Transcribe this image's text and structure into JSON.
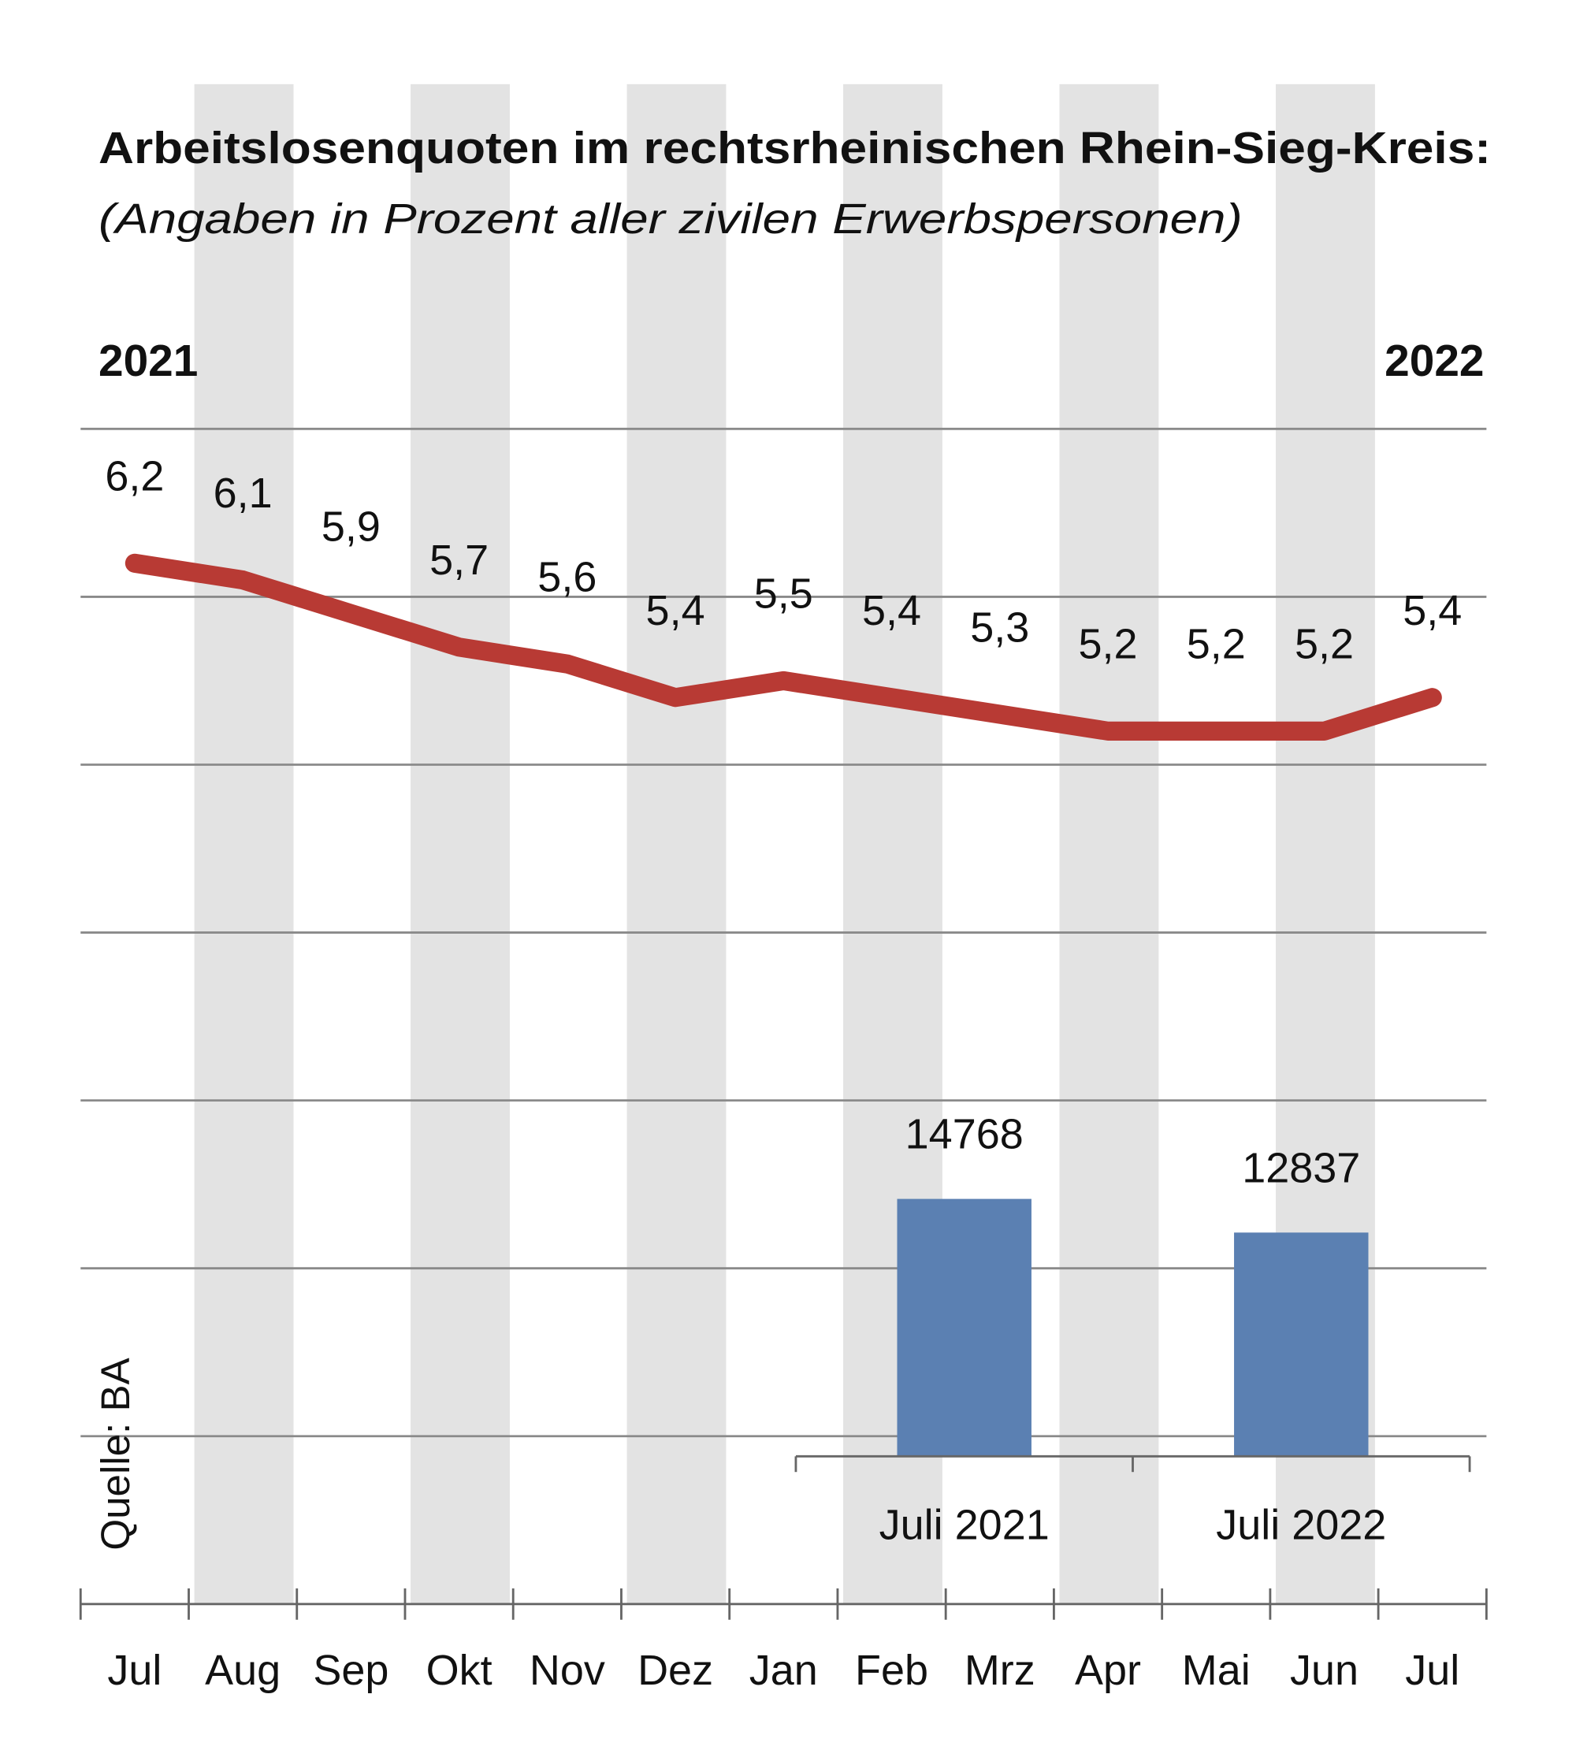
{
  "chart_data": [
    {
      "type": "line",
      "title": "Arbeitslosenquoten im rechtsrheinischen Rhein-Sieg-Kreis:",
      "subtitle": "(Angaben in Prozent aller zivilen Erwerbspersonen)",
      "start_label": "2021",
      "end_label": "2022",
      "source": "Quelle: BA",
      "categories": [
        "Jul",
        "Aug",
        "Sep",
        "Okt",
        "Nov",
        "Dez",
        "Jan",
        "Feb",
        "Mrz",
        "Apr",
        "Mai",
        "Jun",
        "Jul"
      ],
      "values": [
        6.2,
        6.1,
        5.9,
        5.7,
        5.6,
        5.4,
        5.5,
        5.4,
        5.3,
        5.2,
        5.2,
        5.2,
        5.4
      ],
      "value_labels": [
        "6,2",
        "6,1",
        "5,9",
        "5,7",
        "5,6",
        "5,4",
        "5,5",
        "5,4",
        "5,3",
        "5,2",
        "5,2",
        "5,2",
        "5,4"
      ],
      "color": "#b83a34",
      "ylim": [
        0,
        7
      ],
      "gridlines": [
        1,
        2,
        3,
        4,
        5,
        6,
        7
      ],
      "grid": true
    },
    {
      "type": "bar",
      "categories": [
        "Juli 2021",
        "Juli 2022"
      ],
      "values": [
        14768,
        12837
      ],
      "color": "#5b80b2",
      "ylim": [
        0,
        16000
      ]
    }
  ]
}
